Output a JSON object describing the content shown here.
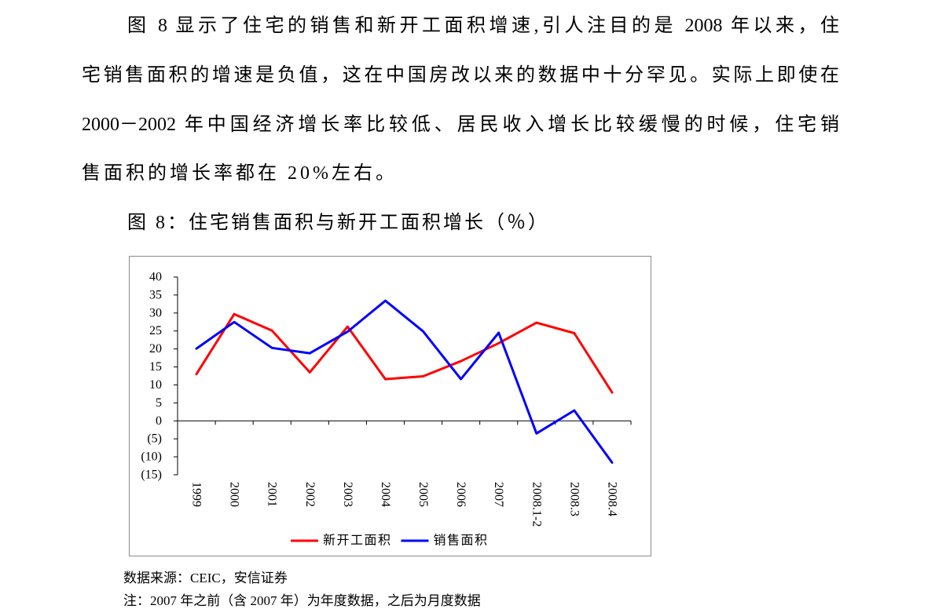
{
  "document": {
    "paragraph_lines": [
      "图 8 显示了住宅的销售和新开工面积增速,引人注目的是 2008 年以来，住",
      "宅销售面积的增速是负值，这在中国房改以来的数据中十分罕见。实际上即使在",
      "2000－2002 年中国经济增长率比较低、居民收入增长比较缓慢的时候，住宅销",
      "售面积的增长率都在 20%左右。"
    ],
    "source": "数据来源：CEIC，安信证券",
    "note": "注：2007 年之前（含 2007 年）为年度数据，之后为月度数据"
  },
  "chart_data": {
    "type": "line",
    "title": "图 8：住宅销售面积与新开工面积增长（％）",
    "categories": [
      "1999",
      "2000",
      "2001",
      "2002",
      "2003",
      "2004",
      "2005",
      "2006",
      "2007",
      "2008.1-2",
      "2008.3",
      "2008.4"
    ],
    "series": [
      {
        "name": "新开工面积",
        "color": "#ff0000",
        "values": [
          13.0,
          29.7,
          25.1,
          13.5,
          26.2,
          11.6,
          12.4,
          16.6,
          21.6,
          27.3,
          24.4,
          7.9
        ]
      },
      {
        "name": "销售面积",
        "color": "#0000ff",
        "values": [
          20.1,
          27.5,
          20.3,
          18.8,
          24.8,
          33.4,
          24.9,
          11.6,
          24.5,
          -3.5,
          2.9,
          -11.6
        ]
      }
    ],
    "ylim": [
      -15,
      40
    ],
    "y_ticks": [
      40,
      35,
      30,
      25,
      20,
      15,
      10,
      5,
      0,
      -5,
      -10,
      -15
    ],
    "y_tick_labels": [
      "40",
      "35",
      "30",
      "25",
      "20",
      "15",
      "10",
      "5",
      "0",
      "(5)",
      "(10)",
      "(15)"
    ],
    "legend": "bottom",
    "grid": false
  }
}
